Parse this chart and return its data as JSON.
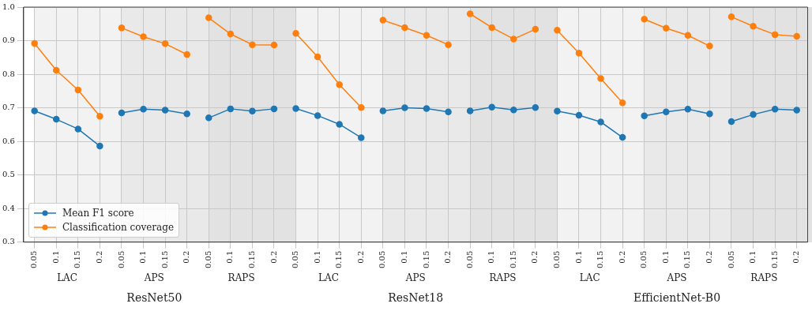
{
  "chart_data": {
    "type": "line",
    "categories": [
      "0.05",
      "0.1",
      "0.15",
      "0.2",
      "0.05",
      "0.1",
      "0.15",
      "0.2",
      "0.05",
      "0.1",
      "0.15",
      "0.2",
      "0.05",
      "0.1",
      "0.15",
      "0.2",
      "0.05",
      "0.1",
      "0.15",
      "0.2",
      "0.05",
      "0.1",
      "0.15",
      "0.2",
      "0.05",
      "0.1",
      "0.15",
      "0.2",
      "0.05",
      "0.1",
      "0.15",
      "0.2",
      "0.05",
      "0.1",
      "0.15",
      "0.2"
    ],
    "series": [
      {
        "name": "Mean F1 score",
        "color": "#1f77b4",
        "values": [
          0.691,
          0.666,
          0.637,
          0.586,
          0.685,
          0.696,
          0.693,
          0.682,
          0.67,
          0.697,
          0.69,
          0.697,
          0.698,
          0.677,
          0.651,
          0.611,
          0.691,
          0.7,
          0.698,
          0.688,
          0.691,
          0.702,
          0.694,
          0.701,
          0.69,
          0.678,
          0.658,
          0.612,
          0.676,
          0.688,
          0.696,
          0.682,
          0.659,
          0.68,
          0.696,
          0.693
        ]
      },
      {
        "name": "Classification coverage",
        "color": "#ff7f0e",
        "values": [
          0.892,
          0.812,
          0.753,
          0.675,
          0.938,
          0.912,
          0.891,
          0.859,
          0.968,
          0.92,
          0.888,
          0.887,
          0.922,
          0.852,
          0.769,
          0.701,
          0.961,
          0.939,
          0.916,
          0.888,
          0.98,
          0.939,
          0.905,
          0.934,
          0.931,
          0.863,
          0.787,
          0.715,
          0.964,
          0.937,
          0.916,
          0.884,
          0.971,
          0.943,
          0.918,
          0.913
        ]
      }
    ],
    "ylim": [
      0.3,
      1.0
    ],
    "yticks": [
      0.3,
      0.4,
      0.5,
      0.6,
      0.7,
      0.8,
      0.9,
      {
        "value": 1.0,
        "label": "1.0"
      }
    ],
    "annotations": [
      "LAC",
      "APS",
      "RAPS",
      "LAC",
      "APS",
      "RAPS",
      "LAC",
      "APS",
      "RAPS",
      "ResNet50",
      "ResNet18",
      "EfficientNet-B0"
    ],
    "grid": true,
    "legend": "bottom left",
    "marker": "circle",
    "line_style": "solid"
  }
}
